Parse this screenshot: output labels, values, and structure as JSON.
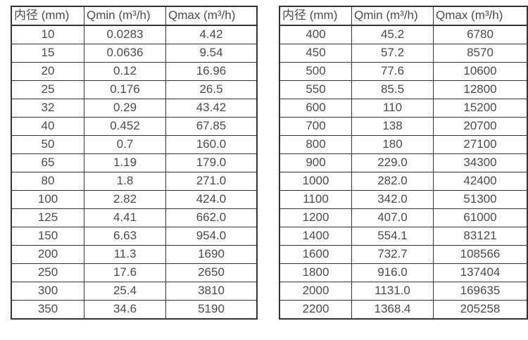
{
  "colors": {
    "background": "#ffffff",
    "border": "#343434",
    "text": "#4c4c4c"
  },
  "tables": [
    {
      "name": "flow-rate-table-small-diameters",
      "headers": [
        "内径 (mm)",
        "Qmin (m³/h)",
        "Qmax (m³/h)"
      ],
      "rows": [
        [
          "10",
          "0.0283",
          "4.42"
        ],
        [
          "15",
          "0.0636",
          "9.54"
        ],
        [
          "20",
          "0.12",
          "16.96"
        ],
        [
          "25",
          "0.176",
          "26.5"
        ],
        [
          "32",
          "0.29",
          "43.42"
        ],
        [
          "40",
          "0.452",
          "67.85"
        ],
        [
          "50",
          "0.7",
          "160.0"
        ],
        [
          "65",
          "1.19",
          "179.0"
        ],
        [
          "80",
          "1.8",
          "271.0"
        ],
        [
          "100",
          "2.82",
          "424.0"
        ],
        [
          "125",
          "4.41",
          "662.0"
        ],
        [
          "150",
          "6.63",
          "954.0"
        ],
        [
          "200",
          "11.3",
          "1690"
        ],
        [
          "250",
          "17.6",
          "2650"
        ],
        [
          "300",
          "25.4",
          "3810"
        ],
        [
          "350",
          "34.6",
          "5190"
        ]
      ]
    },
    {
      "name": "flow-rate-table-large-diameters",
      "headers": [
        "内径 (mm)",
        "Qmin (m³/h)",
        "Qmax (m³/h)"
      ],
      "rows": [
        [
          "400",
          "45.2",
          "6780"
        ],
        [
          "450",
          "57.2",
          "8570"
        ],
        [
          "500",
          "77.6",
          "10600"
        ],
        [
          "550",
          "85.5",
          "12800"
        ],
        [
          "600",
          "110",
          "15200"
        ],
        [
          "700",
          "138",
          "20700"
        ],
        [
          "800",
          "180",
          "27100"
        ],
        [
          "900",
          "229.0",
          "34300"
        ],
        [
          "1000",
          "282.0",
          "42400"
        ],
        [
          "1100",
          "342.0",
          "51300"
        ],
        [
          "1200",
          "407.0",
          "61000"
        ],
        [
          "1400",
          "554.1",
          "83121"
        ],
        [
          "1600",
          "732.7",
          "108566"
        ],
        [
          "1800",
          "916.0",
          "137404"
        ],
        [
          "2000",
          "1131.0",
          "169635"
        ],
        [
          "2200",
          "1368.4",
          "205258"
        ]
      ]
    }
  ]
}
